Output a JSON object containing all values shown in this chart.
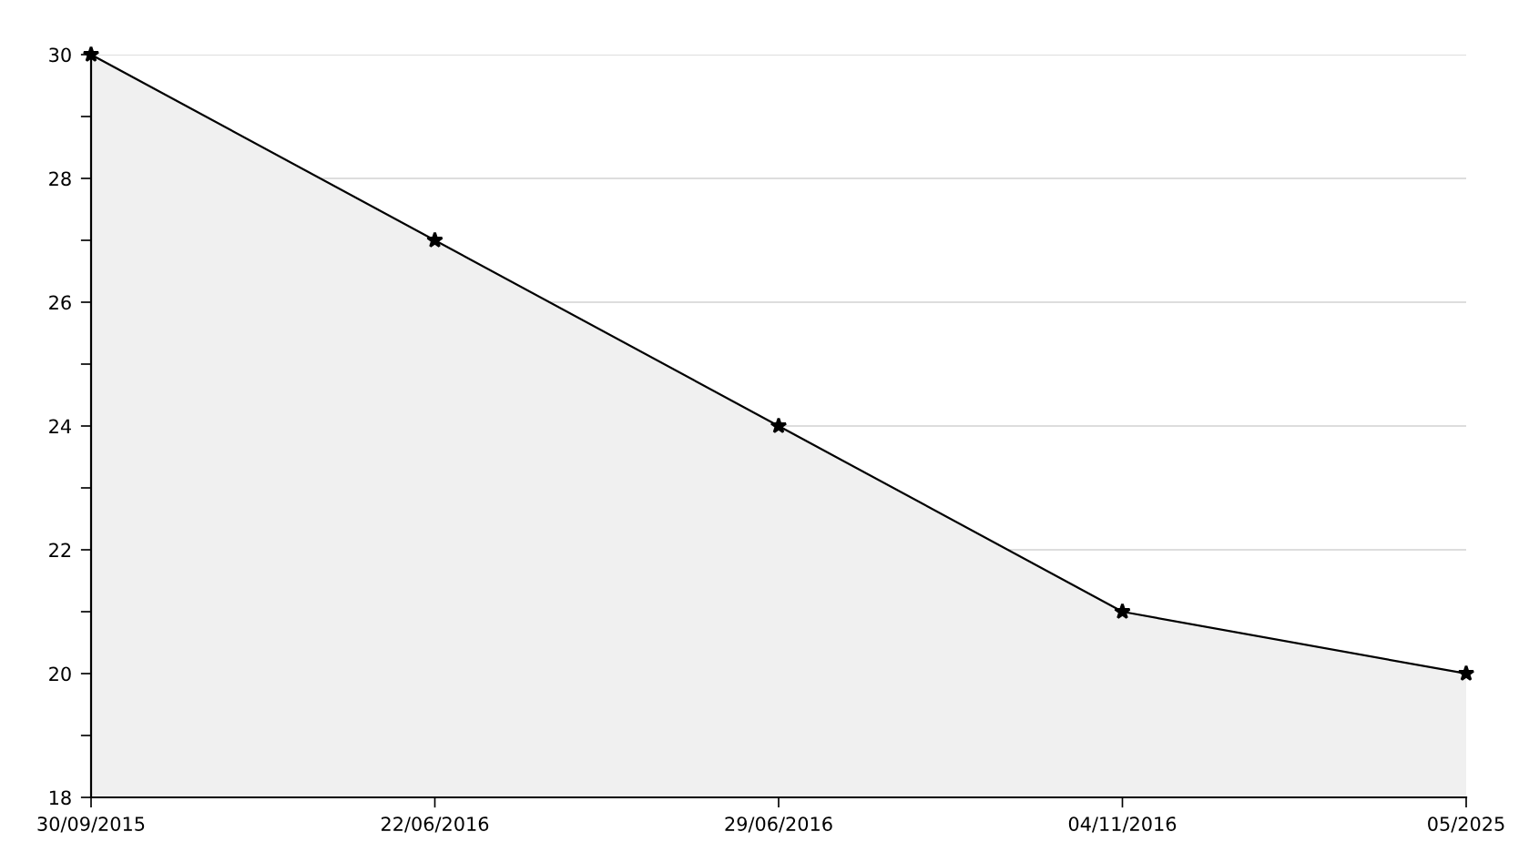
{
  "chart_data": {
    "type": "area",
    "categories": [
      "30/09/2015",
      "22/06/2016",
      "29/06/2016",
      "04/11/2016",
      "05/2025"
    ],
    "series": [
      {
        "color": "#f0f0f0",
        "values": [
          30,
          27,
          24,
          21,
          20
        ]
      }
    ],
    "ylim": [
      18,
      30
    ],
    "yticks": [
      18,
      {
        "value": 19,
        "label": null
      },
      20,
      {
        "value": 21,
        "label": null
      },
      22,
      {
        "value": 23,
        "label": null
      },
      24,
      {
        "value": 25,
        "label": null
      },
      26,
      {
        "value": 27,
        "label": null
      },
      28,
      {
        "value": 29,
        "label": null
      },
      30
    ],
    "grid": "y",
    "marker": "star",
    "line_style": "solid"
  }
}
